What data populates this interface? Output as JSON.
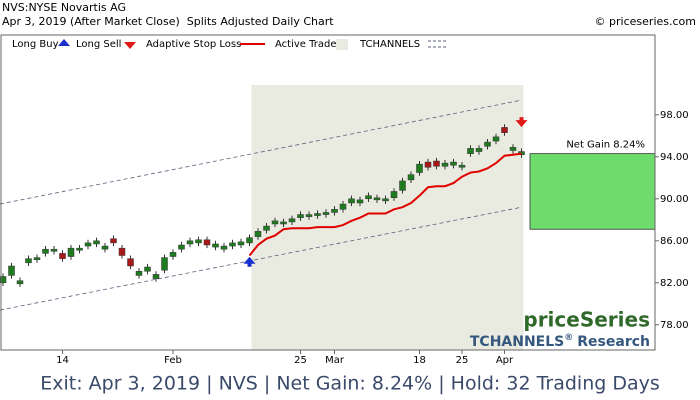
{
  "header": {
    "title": "NVS:NYSE Novartis AG",
    "subtitle": "Apr 3, 2019 (After Market Close)  Splits Adjusted Daily Chart",
    "copyright": "© priceseries.com"
  },
  "chart_data": {
    "type": "candlestick",
    "categories": [
      null,
      null,
      null,
      null,
      null,
      null,
      null,
      "14",
      null,
      null,
      null,
      null,
      null,
      null,
      null,
      null,
      null,
      null,
      null,
      null,
      "Feb",
      null,
      null,
      null,
      null,
      null,
      null,
      null,
      null,
      null,
      null,
      null,
      null,
      null,
      null,
      "25",
      null,
      null,
      null,
      "Mar",
      null,
      null,
      null,
      null,
      null,
      null,
      null,
      null,
      null,
      "18",
      null,
      null,
      null,
      null,
      "25",
      null,
      null,
      null,
      null,
      "Apr",
      null,
      null
    ],
    "open": [
      82.0,
      82.7,
      81.9,
      83.9,
      84.2,
      84.8,
      85.0,
      84.8,
      84.5,
      85.1,
      85.5,
      85.7,
      85.2,
      86.2,
      85.3,
      84.3,
      82.7,
      83.1,
      82.4,
      83.2,
      84.5,
      85.2,
      85.7,
      85.8,
      86.1,
      85.4,
      85.2,
      85.5,
      85.6,
      85.8,
      86.4,
      87.0,
      87.6,
      87.6,
      87.8,
      88.2,
      88.3,
      88.4,
      88.5,
      88.7,
      89.0,
      89.6,
      89.6,
      90.0,
      89.9,
      89.8,
      90.1,
      90.8,
      91.8,
      92.5,
      93.5,
      93.6,
      93.1,
      93.2,
      93.0,
      94.3,
      94.5,
      95.0,
      95.5,
      96.8,
      94.6,
      94.2
    ],
    "high": [
      82.9,
      83.9,
      82.5,
      84.6,
      84.7,
      85.5,
      85.5,
      85.1,
      85.6,
      85.6,
      86.1,
      86.3,
      85.8,
      86.5,
      85.6,
      84.6,
      83.4,
      83.8,
      83.1,
      84.7,
      85.2,
      85.9,
      86.3,
      86.4,
      86.4,
      86.0,
      85.8,
      86.1,
      86.2,
      86.6,
      87.2,
      87.7,
      88.2,
      88.1,
      88.4,
      88.8,
      88.8,
      88.9,
      89.0,
      89.3,
      89.8,
      90.3,
      90.2,
      90.6,
      90.4,
      90.3,
      91.0,
      92.0,
      92.6,
      93.6,
      93.8,
      93.9,
      93.7,
      93.8,
      93.5,
      95.1,
      95.1,
      95.7,
      96.2,
      97.1,
      95.2,
      94.8
    ],
    "low": [
      81.7,
      82.4,
      81.6,
      83.6,
      83.9,
      84.5,
      84.7,
      84.0,
      84.2,
      84.8,
      85.2,
      85.4,
      84.9,
      85.5,
      84.3,
      83.3,
      82.4,
      82.8,
      82.1,
      82.9,
      84.2,
      84.9,
      85.4,
      85.5,
      85.3,
      85.1,
      84.9,
      85.2,
      85.3,
      85.5,
      86.1,
      86.7,
      87.3,
      87.3,
      87.5,
      87.9,
      88.0,
      88.1,
      88.2,
      88.4,
      88.7,
      89.3,
      89.3,
      89.7,
      89.6,
      89.5,
      89.8,
      90.5,
      91.5,
      92.2,
      92.7,
      92.8,
      92.8,
      92.9,
      92.7,
      94.0,
      94.2,
      94.7,
      95.2,
      96.0,
      94.3,
      93.9
    ],
    "close": [
      82.6,
      83.6,
      82.2,
      84.3,
      84.4,
      85.2,
      85.2,
      84.3,
      85.3,
      85.3,
      85.8,
      86.0,
      85.5,
      85.8,
      84.6,
      83.6,
      83.1,
      83.5,
      82.8,
      84.4,
      84.9,
      85.6,
      86.0,
      86.1,
      85.6,
      85.7,
      85.5,
      85.8,
      85.9,
      86.3,
      86.9,
      87.4,
      87.9,
      87.8,
      88.1,
      88.5,
      88.5,
      88.6,
      88.7,
      89.0,
      89.5,
      90.0,
      89.9,
      90.3,
      90.1,
      90.0,
      90.7,
      91.7,
      92.3,
      93.3,
      93.0,
      93.1,
      93.4,
      93.5,
      93.2,
      94.8,
      94.8,
      95.4,
      95.9,
      96.3,
      94.9,
      94.5
    ],
    "up_color": "#1e7b1e",
    "down_color": "#a81818",
    "series": [
      {
        "name": "Long Buy",
        "color": "#1a2fd0",
        "values": [
          null,
          null,
          null,
          null,
          null,
          null,
          null,
          null,
          null,
          null,
          null,
          null,
          null,
          null,
          null,
          null,
          null,
          null,
          null,
          null,
          null,
          null,
          null,
          null,
          null,
          null,
          null,
          null,
          null,
          84.0,
          null,
          null,
          null,
          null,
          null,
          null,
          null,
          null,
          null,
          null,
          null,
          null,
          null,
          null,
          null,
          null,
          null,
          null,
          null,
          null,
          null,
          null,
          null,
          null,
          null,
          null,
          null,
          null,
          null,
          null,
          null,
          null
        ]
      },
      {
        "name": "Long Sell",
        "color": "#e01818",
        "values": [
          null,
          null,
          null,
          null,
          null,
          null,
          null,
          null,
          null,
          null,
          null,
          null,
          null,
          null,
          null,
          null,
          null,
          null,
          null,
          null,
          null,
          null,
          null,
          null,
          null,
          null,
          null,
          null,
          null,
          null,
          null,
          null,
          null,
          null,
          null,
          null,
          null,
          null,
          null,
          null,
          null,
          null,
          null,
          null,
          null,
          null,
          null,
          null,
          null,
          null,
          null,
          null,
          null,
          null,
          null,
          null,
          null,
          null,
          null,
          null,
          null,
          97.3
        ]
      },
      {
        "name": "Adaptive Stop Loss",
        "color": "#e00000",
        "values": [
          null,
          null,
          null,
          null,
          null,
          null,
          null,
          null,
          null,
          null,
          null,
          null,
          null,
          null,
          null,
          null,
          null,
          null,
          null,
          null,
          null,
          null,
          null,
          null,
          null,
          null,
          null,
          null,
          null,
          84.6,
          85.6,
          86.2,
          86.5,
          87.1,
          87.2,
          87.2,
          87.2,
          87.3,
          87.3,
          87.3,
          87.5,
          87.9,
          88.2,
          88.6,
          88.6,
          88.6,
          89.0,
          89.2,
          89.6,
          90.3,
          91.1,
          91.2,
          91.2,
          91.5,
          92.1,
          92.5,
          92.6,
          92.9,
          93.4,
          94.1,
          94.2,
          94.3
        ]
      }
    ],
    "active_trade": {
      "name": "Active Trade",
      "color": "#e9ebe1"
    },
    "channels": {
      "name": "TCHANNELS",
      "color": "#5a5f7a",
      "upper": [
        89.5,
        99.4
      ],
      "lower": [
        79.4,
        89.2
      ]
    },
    "net_gain": {
      "label": "Net Gain 8.24%",
      "low": 87.1,
      "high": 94.3,
      "color": "#6ddc6d"
    },
    "ylim": [
      75.6,
      105.6
    ],
    "yticks": [
      {
        "value": 78,
        "label": "78.00"
      },
      {
        "value": 82,
        "label": "82.00"
      },
      {
        "value": 86,
        "label": "86.00"
      },
      {
        "value": 90,
        "label": "90.00"
      },
      {
        "value": 94,
        "label": "94.00"
      },
      {
        "value": 98,
        "label": "98.00"
      }
    ],
    "watermark": {
      "brand": "priceSeries",
      "research": "TCHANNELS",
      "registered": "®",
      "research_suffix": "Research"
    }
  },
  "footer": "Exit: Apr 3, 2019 | NVS | Net Gain: 8.24% | Hold: 32 Trading Days"
}
